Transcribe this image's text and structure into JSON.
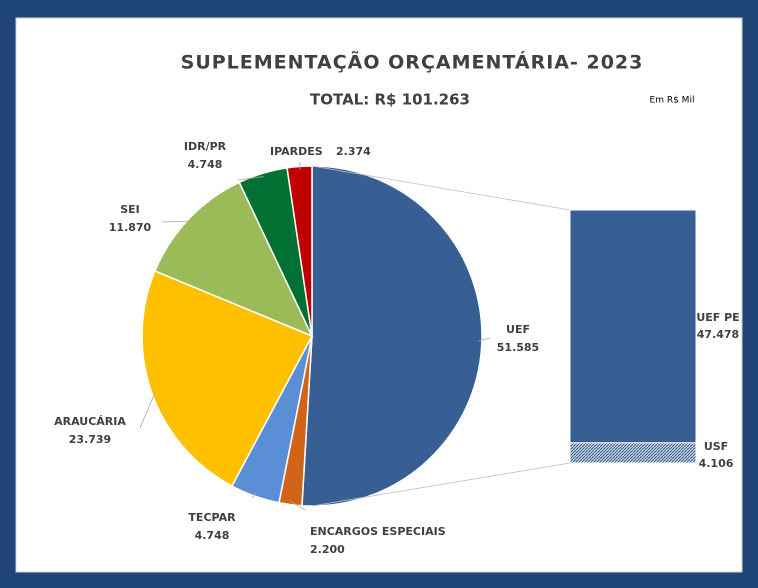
{
  "chart_data": {
    "type": "pie",
    "title": "SUPLEMENTAÇÃO ORÇAMENTÁRIA- 2023",
    "subtitle": "TOTAL: R$ 101.263",
    "note": "Em R$ Mil",
    "categories": [
      "UEF",
      "ENCARGOS ESPECIAIS",
      "TECPAR",
      "ARAUCÁRIA",
      "SEI",
      "IDR/PR",
      "IPARDES"
    ],
    "values": [
      51585,
      2200,
      4748,
      23739,
      11870,
      4748,
      2374
    ],
    "value_labels": [
      "51.585",
      "2.200",
      "4.748",
      "23.739",
      "11.870",
      "4.748",
      "2.374"
    ],
    "colors": [
      "#375f93",
      "#d0651a",
      "#5a8fd6",
      "#ffc000",
      "#9bbb59",
      "#007033",
      "#c00000"
    ],
    "breakdown": {
      "categories": [
        "UEF PE",
        "USF"
      ],
      "values": [
        47478,
        4106
      ],
      "value_labels": [
        "47.478",
        "4.106"
      ],
      "color": "#375f93"
    }
  }
}
